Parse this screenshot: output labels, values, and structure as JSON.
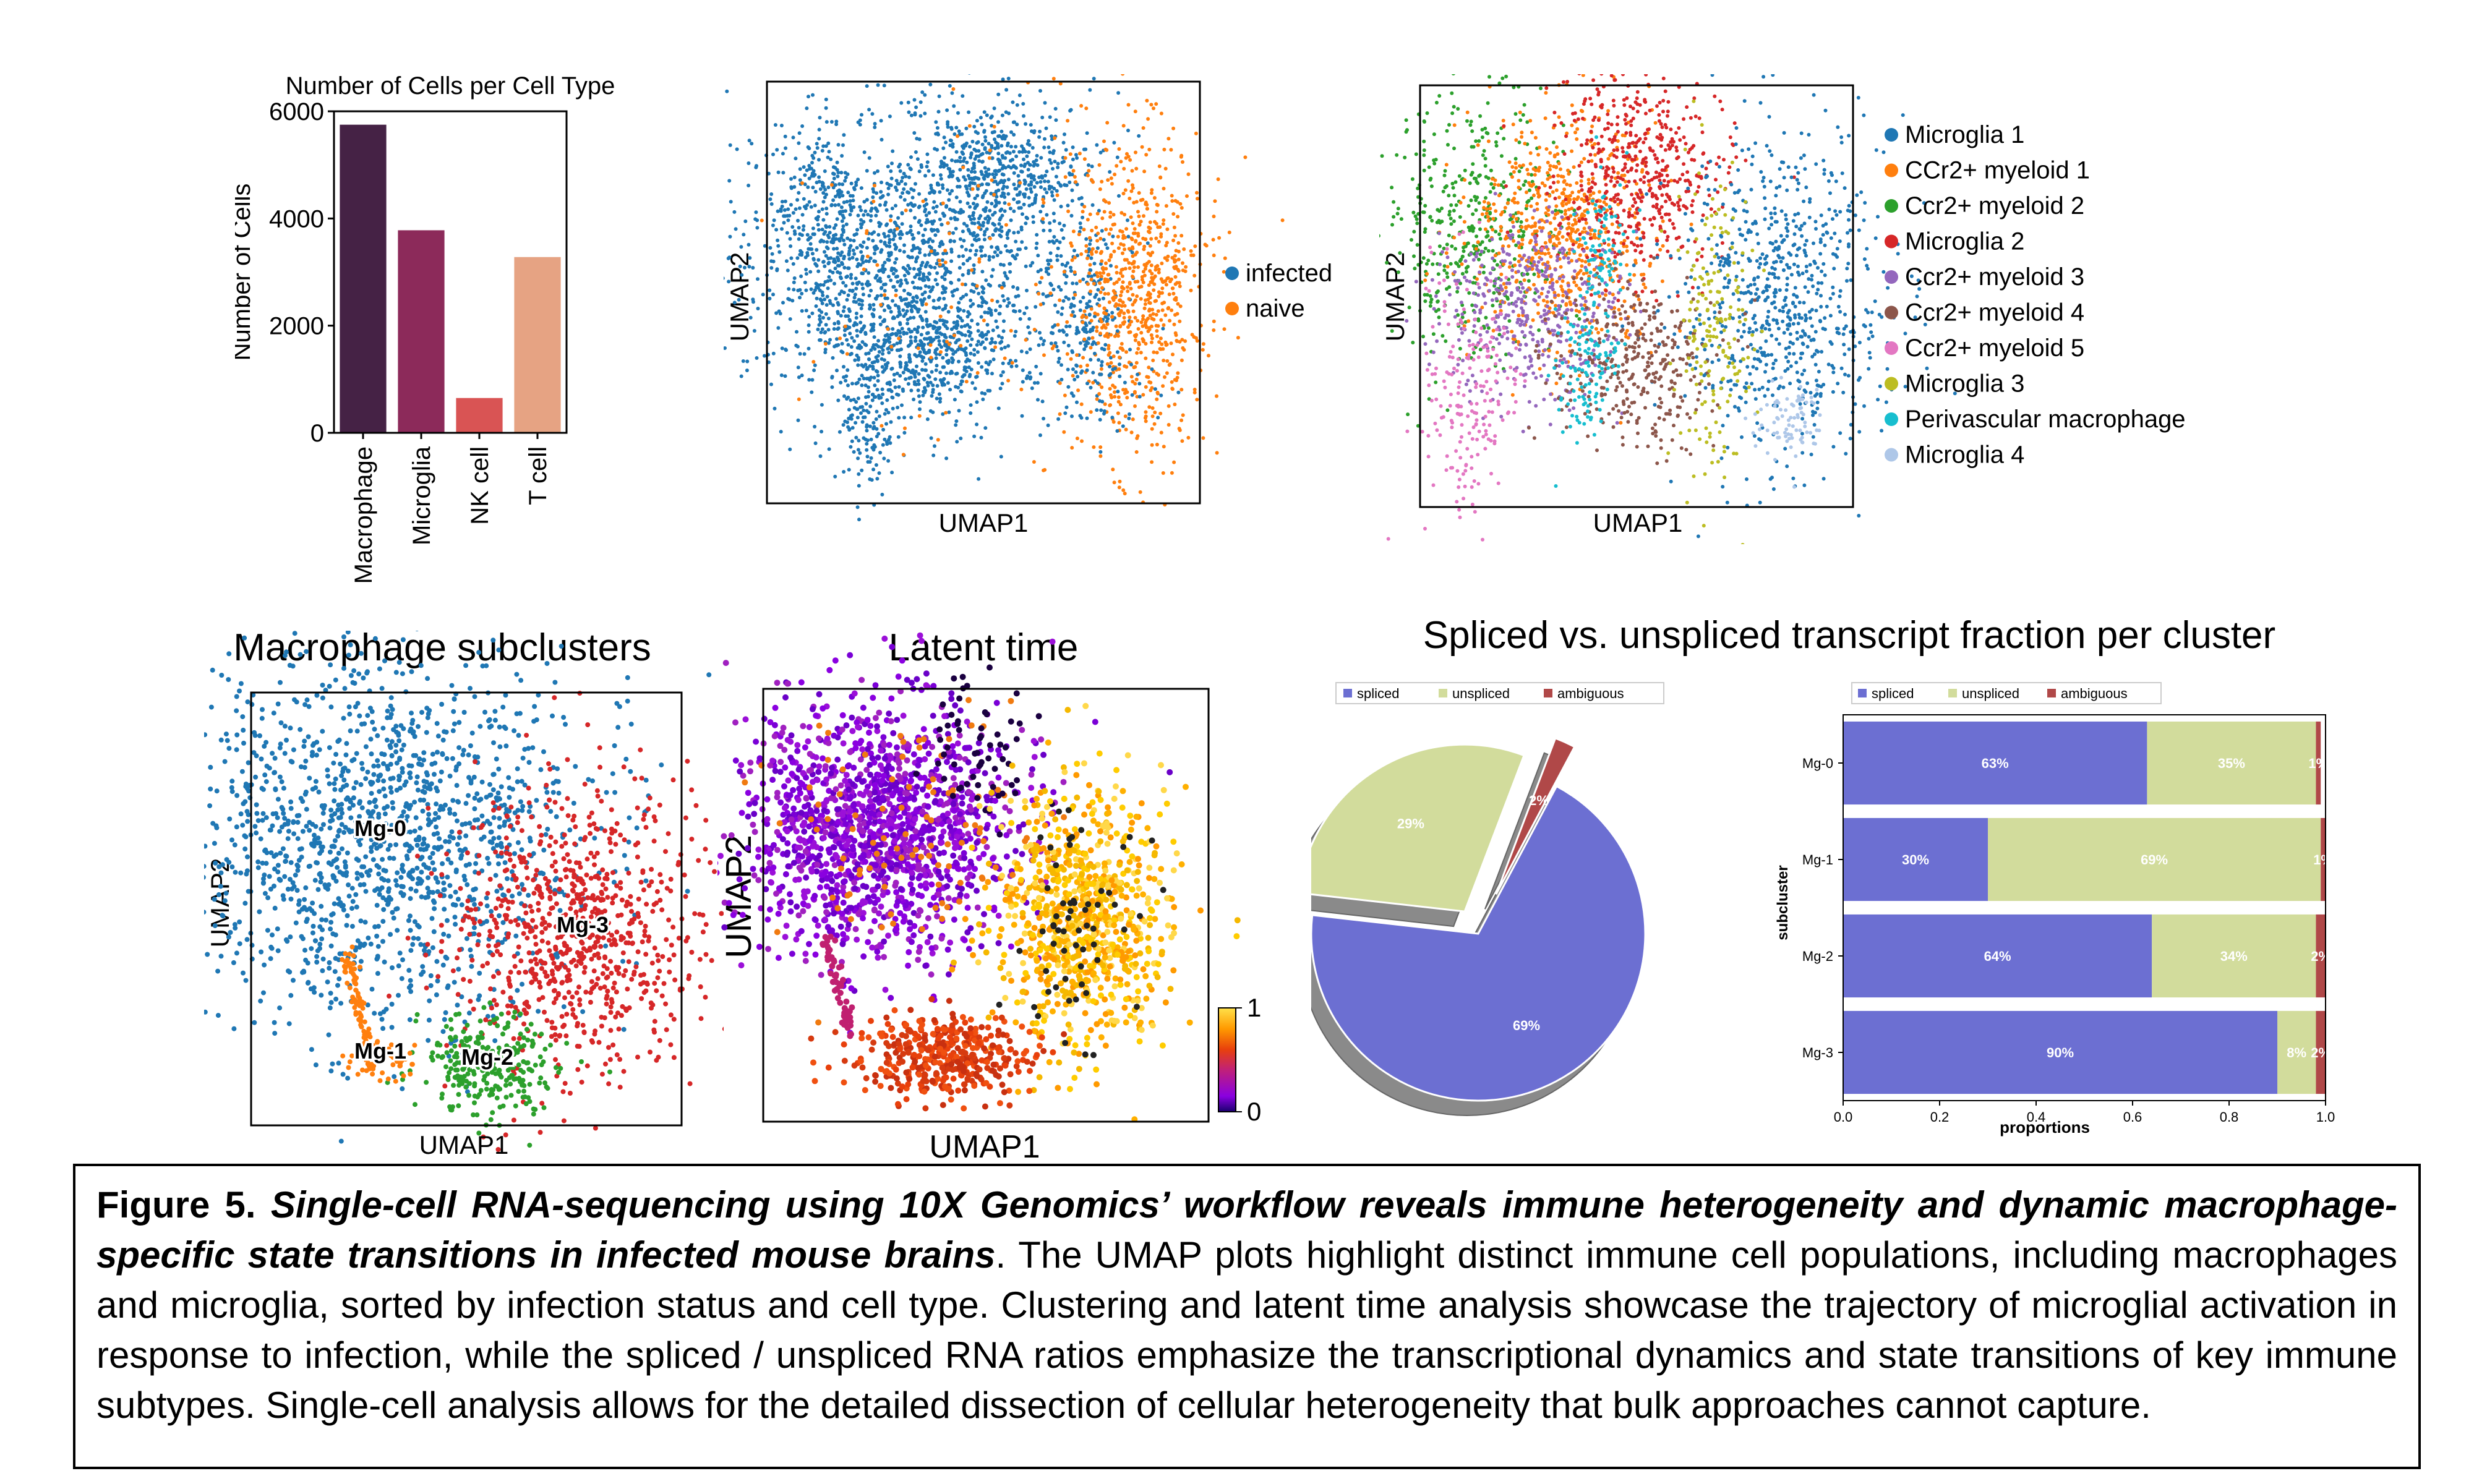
{
  "figure": {
    "panel_a": {
      "title": "Number of Cells per Cell Type",
      "ylabel": "Number of Cells",
      "yticks": [
        "0",
        "2000",
        "4000",
        "6000"
      ]
    },
    "panel_b": {
      "xlabel": "UMAP1",
      "ylabel": "UMAP2",
      "legend": [
        {
          "label": "infected",
          "color": "#1f77b4"
        },
        {
          "label": "naive",
          "color": "#ff7f0e"
        }
      ]
    },
    "panel_c": {
      "xlabel": "UMAP1",
      "ylabel": "UMAP2",
      "legend": [
        {
          "label": "Microglia 1",
          "color": "#1f77b4"
        },
        {
          "label": "CCr2+ myeloid 1",
          "color": "#ff7f0e"
        },
        {
          "label": "Ccr2+ myeloid 2",
          "color": "#2ca02c"
        },
        {
          "label": "Microglia 2",
          "color": "#d62728"
        },
        {
          "label": "Ccr2+ myeloid 3",
          "color": "#9467bd"
        },
        {
          "label": "Ccr2+ myeloid 4",
          "color": "#8c564b"
        },
        {
          "label": "Ccr2+ myeloid 5",
          "color": "#e377c2"
        },
        {
          "label": "Microglia 3",
          "color": "#bcbd22"
        },
        {
          "label": "Perivascular macrophage",
          "color": "#17becf"
        },
        {
          "label": "Microglia 4",
          "color": "#aec7e8"
        }
      ]
    },
    "panel_d": {
      "title": "Macrophage subclusters",
      "xlabel": "UMAP1",
      "ylabel": "UMAP2",
      "cluster_labels": [
        "Mg-0",
        "Mg-1",
        "Mg-2",
        "Mg-3"
      ]
    },
    "panel_e": {
      "title": "Latent time",
      "xlabel": "UMAP1",
      "ylabel": "UMAP2",
      "colorbar_max": "1",
      "colorbar_min": "0"
    },
    "panel_f": {
      "title": "Spliced vs. unspliced transcript fraction per cluster",
      "legend": [
        {
          "label": "spliced",
          "color": "#6c6fd2"
        },
        {
          "label": "unspliced",
          "color": "#d2dc9c"
        },
        {
          "label": "ambiguous",
          "color": "#b04848"
        }
      ],
      "pie_labels": [
        "69%",
        "29%",
        "2%"
      ],
      "bar_ylabel": "subcluster",
      "bar_xlabel": "proportions",
      "bar_xticks": [
        "0.0",
        "0.2",
        "0.4",
        "0.6",
        "0.8",
        "1.0"
      ]
    },
    "caption": {
      "label": "Figure 5.",
      "title": "Single-cell RNA-sequencing using 10X Genomics’ workflow reveals immune heterogeneity and dynamic macrophage-specific state transitions in infected mouse brains",
      "body": ". The UMAP plots highlight distinct immune cell populations, including macrophages and microglia, sorted by infection status and cell type. Clustering and latent time analysis showcase the trajectory of microglial activation in response to infection, while the spliced / unspliced RNA ratios emphasize the transcriptional dynamics and state transitions of key immune subtypes. Single-cell analysis allows for the detailed dissection of cellular heterogeneity that bulk approaches cannot capture."
    }
  },
  "chart_data": [
    {
      "type": "bar",
      "title": "Number of Cells per Cell Type",
      "ylabel": "Number of Cells",
      "categories": [
        "Macrophage",
        "Microglia",
        "NK cell",
        "T cell"
      ],
      "values": [
        5750,
        3780,
        650,
        3280
      ],
      "colors": [
        "#452245",
        "#8c2a5a",
        "#d95454",
        "#e6a383"
      ],
      "ylim": [
        0,
        6000
      ]
    },
    {
      "type": "pie",
      "categories": [
        "spliced",
        "unspliced",
        "ambiguous"
      ],
      "values": [
        69,
        29,
        2
      ],
      "labels": [
        "69%",
        "29%",
        "2%"
      ],
      "colors": [
        "#6c6fd2",
        "#d2dc9c",
        "#b04848"
      ]
    },
    {
      "type": "bar",
      "orientation": "horizontal-stacked",
      "ylabel": "subcluster",
      "xlabel": "proportions",
      "categories": [
        "Mg-0",
        "Mg-1",
        "Mg-2",
        "Mg-3"
      ],
      "xlim": [
        0,
        1
      ],
      "series": [
        {
          "name": "spliced",
          "values": [
            0.63,
            0.3,
            0.64,
            0.9
          ],
          "labels": [
            "63%",
            "30%",
            "64%",
            "90%"
          ],
          "color": "#6c6fd2"
        },
        {
          "name": "unspliced",
          "values": [
            0.35,
            0.69,
            0.34,
            0.08
          ],
          "labels": [
            "35%",
            "69%",
            "34%",
            "8%"
          ],
          "color": "#d2dc9c"
        },
        {
          "name": "ambiguous",
          "values": [
            0.01,
            0.01,
            0.02,
            0.02
          ],
          "labels": [
            "1%",
            "1%",
            "2%",
            "2%"
          ],
          "color": "#b04848"
        }
      ]
    }
  ]
}
